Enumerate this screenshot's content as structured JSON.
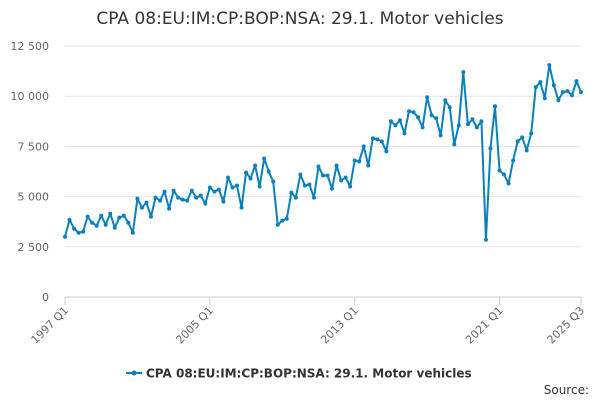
{
  "chart_data": {
    "type": "line",
    "title": "CPA 08:EU:IM:CP:BOP:NSA: 29.1. Motor vehicles",
    "xlabel": "",
    "ylabel": "",
    "ylim": [
      0,
      12500
    ],
    "yticks": [
      0,
      2500,
      5000,
      7500,
      10000,
      12500
    ],
    "ytick_labels": [
      "0",
      "2 500",
      "5 000",
      "7 500",
      "10 000",
      "12 500"
    ],
    "xticks": [
      {
        "label": "1997 Q1",
        "index": 0
      },
      {
        "label": "2005 Q1",
        "index": 32
      },
      {
        "label": "2013 Q1",
        "index": 64
      },
      {
        "label": "2021 Q1",
        "index": 96
      },
      {
        "label": "2025 Q3",
        "index": 114
      }
    ],
    "grid": "horizontal",
    "legend_position": "bottom",
    "line_color": "#0a81be",
    "series": [
      {
        "name": "CPA 08:EU:IM:CP:BOP:NSA: 29.1. Motor vehicles",
        "values": [
          3000,
          3850,
          3400,
          3200,
          3250,
          4000,
          3700,
          3550,
          4050,
          3600,
          4150,
          3450,
          3950,
          4050,
          3700,
          3200,
          4900,
          4450,
          4700,
          4000,
          4950,
          4800,
          5250,
          4400,
          5300,
          4950,
          4850,
          4800,
          5300,
          4950,
          5050,
          4650,
          5450,
          5250,
          5350,
          4750,
          5950,
          5450,
          5550,
          4450,
          6200,
          5900,
          6550,
          5500,
          6900,
          6250,
          5750,
          3600,
          3800,
          3900,
          5200,
          4950,
          6100,
          5550,
          5600,
          4950,
          6500,
          6050,
          6050,
          5400,
          6550,
          5800,
          5950,
          5500,
          6800,
          6750,
          7500,
          6550,
          7900,
          7850,
          7750,
          7250,
          8750,
          8550,
          8800,
          8150,
          9250,
          9200,
          8950,
          8450,
          9950,
          9050,
          8900,
          8050,
          9800,
          9450,
          7600,
          8550,
          11200,
          8600,
          8850,
          8450,
          8750,
          2850,
          7400,
          9500,
          6300,
          6100,
          5650,
          6800,
          7750,
          7950,
          7300,
          8150,
          10450,
          10700,
          9900,
          11550,
          10550,
          9800,
          10200,
          10250,
          10050,
          10750,
          10200
        ]
      }
    ],
    "source_label": "Source:"
  }
}
